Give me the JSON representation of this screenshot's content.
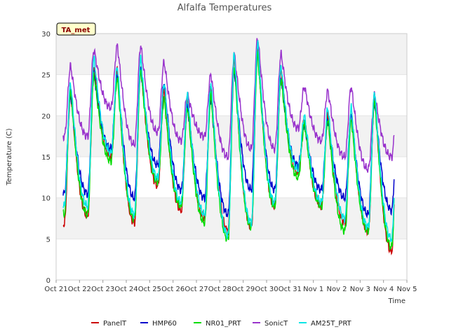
{
  "chart_data": {
    "type": "line",
    "title": "Alfalfa Temperatures",
    "xlabel": "Time",
    "ylabel": "Temperature (C)",
    "badge": "TA_met",
    "ylim": [
      0,
      30
    ],
    "yticks": [
      0,
      5,
      10,
      15,
      20,
      25,
      30
    ],
    "xlim": [
      0,
      15
    ],
    "xtick_labels": [
      "Oct 21",
      "Oct 22",
      "Oct 23",
      "Oct 24",
      "Oct 25",
      "Oct 26",
      "Oct 27",
      "Oct 28",
      "Oct 29",
      "Oct 30",
      "Oct 31",
      "Nov 1",
      "Nov 2",
      "Nov 3",
      "Nov 4",
      "Nov 5"
    ],
    "grid": "horizontal bands",
    "legend_position": "bottom",
    "x_start": 0.3,
    "x_end": 14.45,
    "day_min_at": 0.35,
    "day_max_at": 0.62,
    "series": [
      {
        "name": "PanelT",
        "color": "#cc0000",
        "mins": [
          6.8,
          7.8,
          15.0,
          7.0,
          11.5,
          8.5,
          7.5,
          6.0,
          6.5,
          9.0,
          13.0,
          9.0,
          7.0,
          6.0,
          3.5
        ],
        "maxs": [
          23.0,
          26.0,
          25.5,
          26.0,
          23.0,
          22.0,
          23.5,
          27.0,
          28.5,
          25.5,
          19.5,
          20.0,
          20.5,
          22.5,
          22.5
        ]
      },
      {
        "name": "HMP60",
        "color": "#0000cc",
        "mins": [
          10.5,
          10.5,
          16.0,
          10.0,
          14.0,
          11.0,
          10.0,
          8.0,
          11.0,
          11.0,
          14.0,
          11.0,
          10.0,
          8.0,
          8.5
        ],
        "maxs": [
          22.5,
          25.0,
          25.0,
          25.5,
          24.0,
          21.0,
          22.0,
          25.5,
          27.5,
          24.5,
          19.0,
          19.5,
          20.0,
          21.5,
          21.5
        ]
      },
      {
        "name": "NR01_PRT",
        "color": "#00dd00",
        "mins": [
          8.0,
          8.0,
          14.5,
          7.5,
          12.0,
          9.0,
          7.0,
          5.0,
          6.5,
          9.0,
          12.5,
          9.0,
          6.0,
          6.0,
          4.0
        ],
        "maxs": [
          23.0,
          25.0,
          24.5,
          25.5,
          22.0,
          21.0,
          22.5,
          26.0,
          27.5,
          24.5,
          19.0,
          19.5,
          19.5,
          22.0,
          22.0
        ]
      },
      {
        "name": "SonicT",
        "color": "#9933cc",
        "mins": [
          17.5,
          17.5,
          21.0,
          16.5,
          18.0,
          17.0,
          17.5,
          15.0,
          16.0,
          16.0,
          18.5,
          17.0,
          15.0,
          13.5,
          15.0
        ],
        "maxs": [
          26.0,
          28.0,
          28.5,
          28.5,
          26.5,
          22.5,
          25.0,
          27.5,
          29.5,
          27.5,
          23.5,
          23.0,
          23.5,
          22.5,
          23.5
        ]
      },
      {
        "name": "AM25T_PRT",
        "color": "#00e5e5",
        "mins": [
          9.0,
          9.0,
          15.5,
          8.0,
          12.5,
          9.5,
          8.0,
          5.5,
          7.0,
          9.5,
          13.5,
          9.5,
          7.5,
          6.5,
          5.0
        ],
        "maxs": [
          24.0,
          27.0,
          26.0,
          27.0,
          24.0,
          22.5,
          24.0,
          27.5,
          29.0,
          26.0,
          20.0,
          21.0,
          21.0,
          23.0,
          23.0
        ]
      }
    ]
  }
}
